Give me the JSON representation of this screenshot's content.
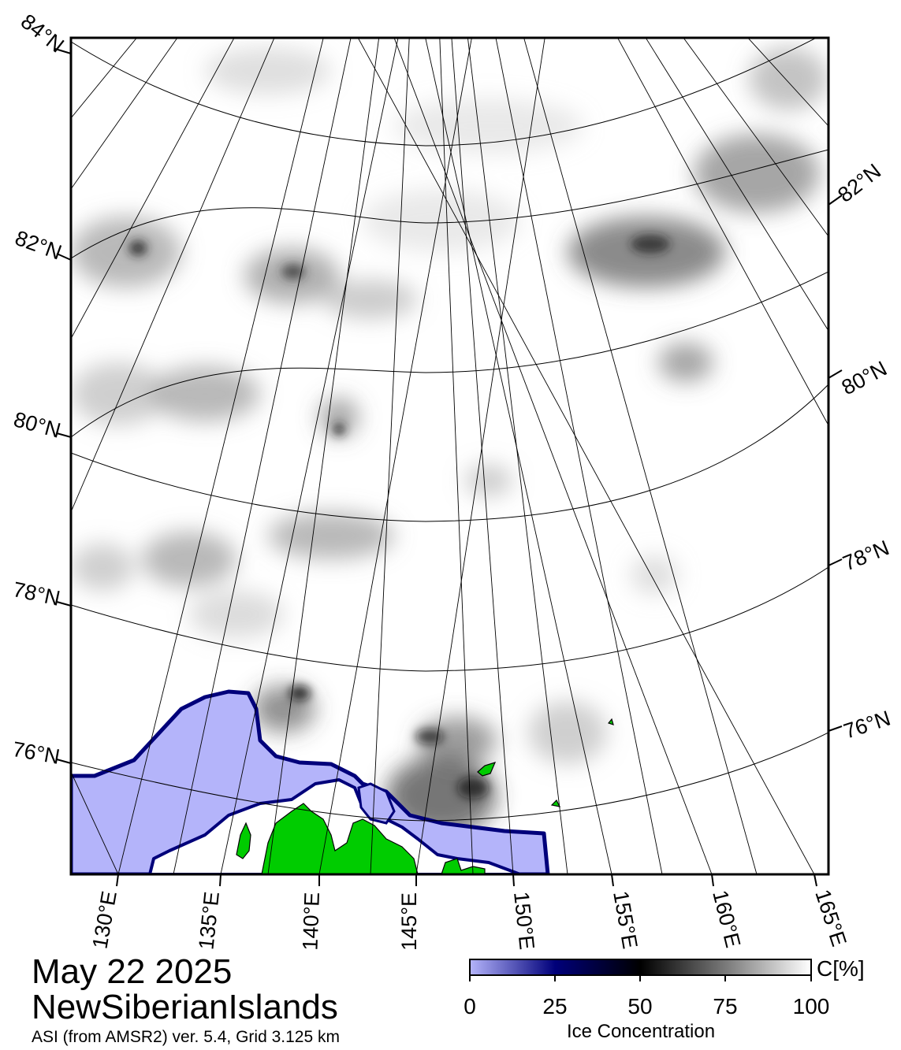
{
  "map": {
    "lat_labels_left": [
      "84°N",
      "82°N",
      "80°N",
      "78°N",
      "76°N"
    ],
    "lat_labels_right": [
      "82°N",
      "80°N",
      "78°N",
      "76°N"
    ],
    "lon_labels": [
      "130°E",
      "135°E",
      "140°E",
      "145°E",
      "150°E",
      "155°E",
      "160°E",
      "165°E"
    ],
    "colors": {
      "open_water": "#ffffff",
      "low_concentration": "#b4b4fa",
      "land": "#00cc00",
      "ice_dark": "#000000",
      "graticule": "#000000"
    }
  },
  "title": {
    "date": "May 22 2025",
    "region": "NewSiberianIslands",
    "source": "ASI (from AMSR2) ver. 5.4,  Grid 3.125 km"
  },
  "colorbar": {
    "ticks": [
      "0",
      "25",
      "50",
      "75",
      "100"
    ],
    "unit": "C[%]",
    "label": "Ice Concentration",
    "range": [
      0,
      100
    ],
    "stops": [
      "#b4b4fa",
      "#00007a",
      "#000000",
      "#7a7a7a",
      "#ffffff"
    ]
  }
}
